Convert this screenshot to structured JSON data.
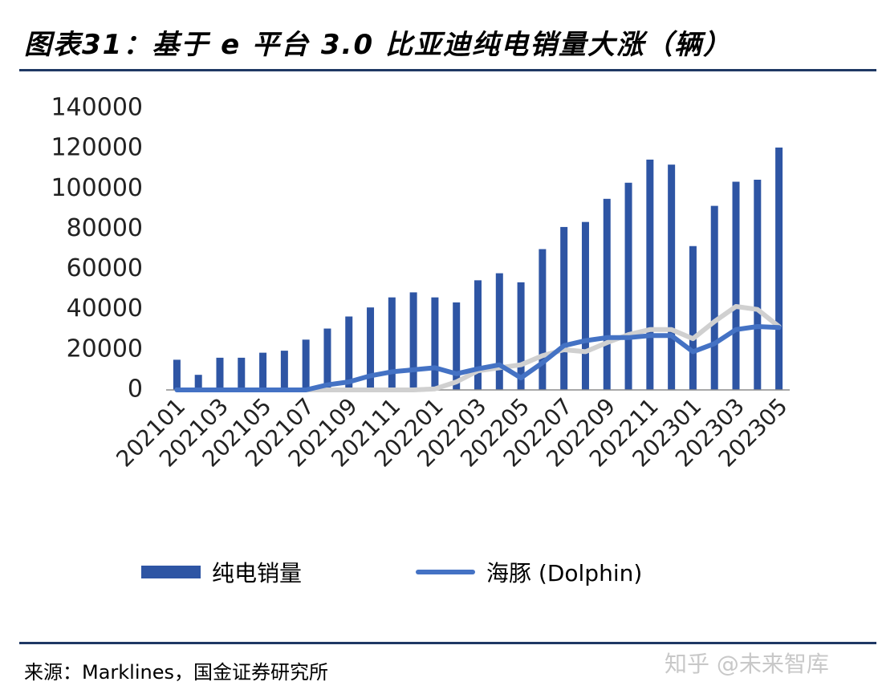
{
  "header": {
    "title": "图表31：基于 e 平台 3.0 比亚迪纯电销量大涨（辆）"
  },
  "footer": {
    "source": "来源：Marklines，国金证券研究所",
    "watermark": "知乎 @未来智库"
  },
  "colors": {
    "bar": "#2e55a4",
    "dolphin": "#4472c4",
    "gray_series": "#d0d0d0",
    "rule": "#1f3864"
  },
  "chart_data": {
    "type": "bar",
    "title": "",
    "ylim": [
      0,
      140000
    ],
    "yticks": [
      0,
      20000,
      40000,
      60000,
      80000,
      100000,
      120000,
      140000
    ],
    "categories": [
      "202101",
      "202102",
      "202103",
      "202104",
      "202105",
      "202106",
      "202107",
      "202108",
      "202109",
      "202110",
      "202111",
      "202112",
      "202201",
      "202202",
      "202203",
      "202204",
      "202205",
      "202206",
      "202207",
      "202208",
      "202209",
      "202210",
      "202211",
      "202212",
      "202301",
      "202302",
      "202303",
      "202304",
      "202305"
    ],
    "xtick_labels": [
      "202101",
      "202103",
      "202105",
      "202107",
      "202109",
      "202111",
      "202201",
      "202203",
      "202205",
      "202207",
      "202209",
      "202211",
      "202301",
      "202303",
      "202305"
    ],
    "series": [
      {
        "name": "纯电销量",
        "type": "bar",
        "values": [
          15000,
          7500,
          16000,
          16000,
          18500,
          19500,
          25000,
          30500,
          36500,
          41000,
          46000,
          48500,
          46000,
          43500,
          54500,
          58000,
          53500,
          70000,
          81000,
          83500,
          95000,
          103000,
          114500,
          112000,
          71500,
          91500,
          103500,
          104500,
          120500
        ]
      },
      {
        "name": "海豚 (Dolphin)",
        "type": "line",
        "values": [
          0,
          0,
          0,
          0,
          0,
          0,
          0,
          2500,
          4000,
          7000,
          9000,
          10000,
          11000,
          8000,
          10500,
          12500,
          6000,
          13500,
          22000,
          24500,
          26000,
          26000,
          27000,
          27000,
          19000,
          23000,
          30000,
          31500,
          31000
        ]
      },
      {
        "name": "",
        "type": "line",
        "values": [
          0,
          0,
          0,
          0,
          0,
          0,
          0,
          0,
          0,
          0,
          0,
          0,
          500,
          4000,
          9500,
          11000,
          12500,
          17000,
          20000,
          19000,
          23500,
          27500,
          30000,
          30000,
          25500,
          34000,
          41500,
          40000,
          31500
        ]
      }
    ]
  }
}
